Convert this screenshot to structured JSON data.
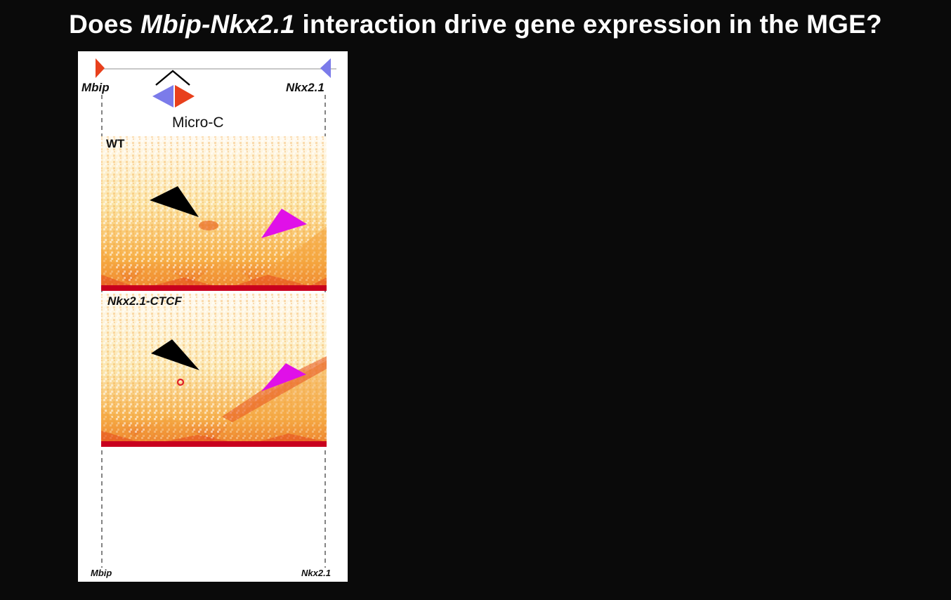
{
  "slide": {
    "title_italic": "Mbip-Nkx2.1",
    "title_pre": "Does ",
    "title_post": " interaction drive gene expression in the MGE?"
  },
  "figure": {
    "top_left_gene": "Mbip",
    "top_right_gene": "Nkx2.1",
    "assay_label": "Micro-C",
    "panel_wt_label": "WT",
    "panel_mutant_label": "Nkx2.1-CTCF",
    "bottom_left_gene": "Mbip",
    "bottom_right_gene": "Nkx2.1",
    "colors": {
      "background": "#0a0a0a",
      "map_low": "#ffffff",
      "map_high": "#c8001e",
      "ctcf_forward": "#e8401c",
      "ctcf_reverse": "#7b7bea",
      "loop_arrow": "#000000",
      "stripe_arrow": "#e010e8",
      "lost_contact_marker": "#e0202a"
    },
    "icons": [
      "ctcf-forward-arrow-icon",
      "ctcf-reverse-arrow-icon",
      "loop-arc-icon",
      "loop-pointer-icon",
      "stripe-pointer-icon"
    ]
  }
}
